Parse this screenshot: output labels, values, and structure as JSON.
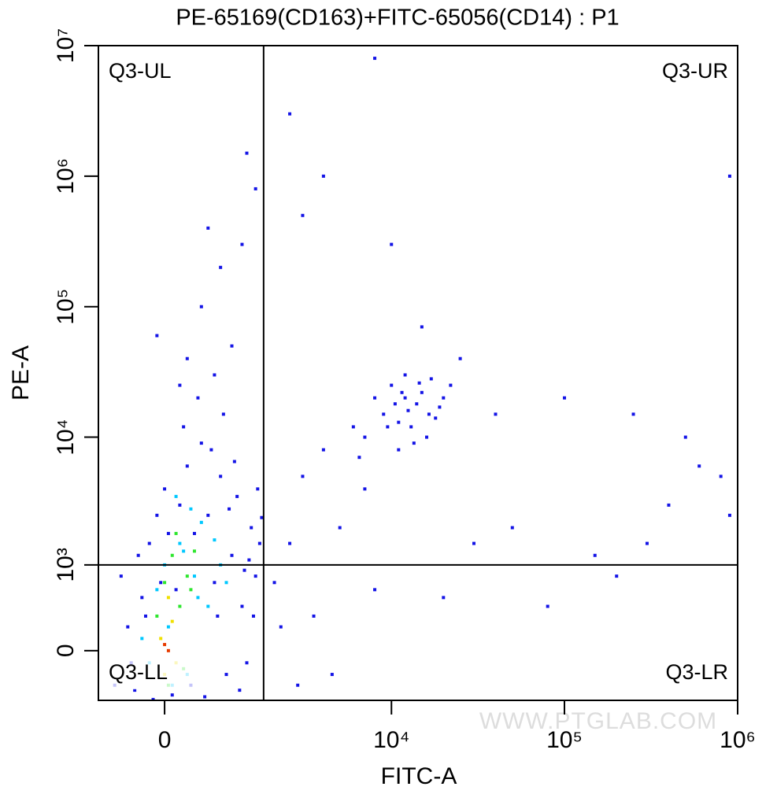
{
  "chart_data": {
    "type": "scatter",
    "title": "PE-65169(CD163)+FITC-65056(CD14) : P1",
    "xlabel": "FITC-A",
    "ylabel": "PE-A",
    "xscale": "biexponential",
    "yscale": "biexponential",
    "xlim": [
      -980,
      1000000
    ],
    "ylim": [
      -460,
      10000000
    ],
    "xticks": [
      0,
      {
        "value": 10000,
        "label": "10⁴"
      },
      {
        "value": 100000,
        "label": "10⁵"
      },
      {
        "value": 1000000,
        "label": "10⁶"
      }
    ],
    "yticks": [
      0,
      {
        "value": 1000,
        "label": "10³"
      },
      {
        "value": 10000,
        "label": "10⁴"
      },
      {
        "value": 100000,
        "label": "10⁵"
      },
      {
        "value": 1000000,
        "label": "10⁶"
      },
      {
        "value": 10000000,
        "label": "10⁷"
      }
    ],
    "gates": {
      "x": 1700,
      "y": 1000
    },
    "quadrant_labels": {
      "upper_left": "Q3-UL",
      "upper_right": "Q3-UR",
      "lower_left": "Q3-LL",
      "lower_right": "Q3-LR"
    },
    "watermark": "WWW.PTGLAB.COM",
    "series": [
      {
        "color": "#1414e6",
        "x": [
          -700,
          -500,
          -400,
          -300,
          -200,
          -100,
          0,
          100,
          200,
          300,
          400,
          500,
          600,
          700,
          800,
          900,
          1000,
          1100,
          1200,
          1300,
          1400,
          1500,
          1600,
          -600,
          -350,
          -150,
          50,
          250,
          450,
          650,
          850,
          1050,
          1250,
          1450,
          -450,
          150,
          350,
          550,
          750,
          950,
          1150,
          1350,
          -250,
          -50,
          1550,
          1650,
          300,
          -100,
          500,
          800,
          1200,
          1500,
          1300,
          600,
          200,
          1000,
          700,
          2500,
          3000,
          4000,
          5000,
          6000,
          7000,
          3500,
          4500,
          8000,
          2000,
          2200,
          2800,
          30000,
          50000,
          80000,
          200000,
          400000,
          600000,
          800000,
          900000,
          150000,
          300000,
          100000,
          250000,
          500000,
          40000,
          25000,
          15000,
          10000,
          4000,
          2500,
          8000,
          900000,
          3000,
          20000,
          7000,
          8000,
          9000,
          10000,
          11000,
          12000,
          13000,
          14000,
          15000,
          16000,
          17000,
          18000,
          20000,
          22000,
          9500,
          10500,
          11500,
          12500,
          13500,
          14500,
          6500,
          19000,
          16500,
          11000,
          12000
        ],
        "y": [
          -300,
          200,
          -350,
          500,
          1500,
          2500,
          4000,
          -400,
          3000,
          6000,
          1800,
          9000,
          2500,
          700,
          5000,
          -200,
          1200,
          3500,
          400,
          -100,
          2000,
          800,
          1500,
          800,
          1200,
          -450,
          1800,
          12000,
          20000,
          8000,
          15000,
          6500,
          900,
          300,
          -100,
          600,
          -300,
          -420,
          300,
          2800,
          -350,
          1100,
          300,
          700,
          4000,
          2400,
          40000,
          60000,
          100000,
          200000,
          300000,
          800000,
          1500000,
          400000,
          25000,
          50000,
          30000,
          1500,
          5000,
          8000,
          2000,
          12000,
          4000,
          300,
          -200,
          600,
          700,
          200,
          -300,
          1500,
          2000,
          400,
          800,
          3000,
          6000,
          5000,
          2500,
          1200,
          1500,
          20000,
          15000,
          10000,
          15000,
          40000,
          70000,
          300000,
          1000000,
          3000000,
          8000000,
          1000000,
          500000,
          500,
          10000,
          20000,
          15000,
          25000,
          8000,
          30000,
          12000,
          18000,
          22000,
          10000,
          28000,
          14000,
          20000,
          25000,
          12000,
          18000,
          22000,
          16000,
          9000,
          26000,
          7000,
          17000,
          15000,
          13000,
          20000
        ]
      },
      {
        "color": "#00c8ff",
        "x": [
          -300,
          -100,
          0,
          200,
          300,
          400,
          500,
          600,
          100,
          700,
          -200,
          800,
          350,
          150,
          250,
          450,
          900,
          50
        ],
        "y": [
          100,
          600,
          1000,
          1500,
          -200,
          800,
          2200,
          400,
          -300,
          1600,
          -100,
          1000,
          2800,
          3500,
          1300,
          500,
          700,
          200
        ]
      },
      {
        "color": "#2ee62e",
        "x": [
          -100,
          0,
          100,
          200,
          300,
          150,
          250,
          350,
          50,
          400
        ],
        "y": [
          300,
          700,
          1200,
          400,
          800,
          1800,
          -150,
          600,
          -300,
          1300
        ]
      },
      {
        "color": "#f0e000",
        "x": [
          -50,
          50,
          150,
          100,
          0
        ],
        "y": [
          100,
          500,
          -100,
          250,
          -200
        ]
      },
      {
        "color": "#e63c00",
        "x": [
          50,
          0
        ],
        "y": [
          0,
          50
        ]
      }
    ]
  }
}
